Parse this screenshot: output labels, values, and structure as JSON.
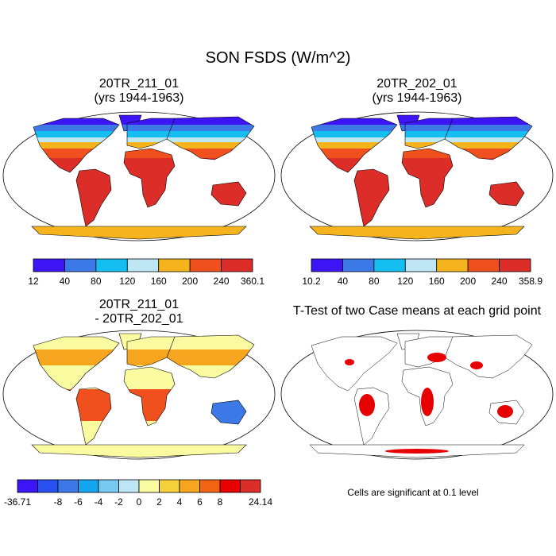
{
  "title": "SON FSDS (W/m^2)",
  "panels": {
    "a": {
      "title_line1": "20TR_211_01",
      "title_line2": "(yrs 1944-1963)"
    },
    "b": {
      "title_line1": "20TR_202_01",
      "title_line2": "(yrs 1944-1963)"
    },
    "c": {
      "title_line1": "20TR_211_01",
      "title_line2": "- 20TR_202_01"
    },
    "d": {
      "title": "T-Test of two Case means at each grid point",
      "note": "Cells are significant at 0.1 level"
    }
  },
  "colorbars": {
    "a": {
      "colors": [
        "#3d14f5",
        "#3c78e6",
        "#14bef0",
        "#bee6f5",
        "#f5b41e",
        "#f0501e",
        "#dc2d28"
      ],
      "labels": [
        "12",
        "40",
        "80",
        "120",
        "160",
        "200",
        "240",
        "360.1"
      ]
    },
    "b": {
      "colors": [
        "#3d14f5",
        "#3c78e6",
        "#14bef0",
        "#bee6f5",
        "#f5b41e",
        "#f0501e",
        "#dc2d28"
      ],
      "labels": [
        "10.2",
        "40",
        "80",
        "120",
        "160",
        "200",
        "240",
        "358.9"
      ]
    },
    "c": {
      "colors": [
        "#3d14f5",
        "#2850f0",
        "#3c78e6",
        "#14a5f0",
        "#78c8f0",
        "#bee6f5",
        "#fafaa0",
        "#f5d23c",
        "#f5a51e",
        "#f06414",
        "#e60000",
        "#dc2d28"
      ],
      "labels": [
        "-36.71",
        "",
        "-8",
        "-6",
        "-4",
        "-2",
        "0",
        "2",
        "4",
        "6",
        "8",
        "",
        "24.14"
      ]
    }
  },
  "map_colors": {
    "ocean": "#ffffff",
    "coast": "#000000",
    "high": "#dc2d28",
    "mid_high": "#f0501e",
    "mid": "#f5b41e",
    "low_mid": "#bee6f5",
    "low": "#14bef0",
    "very_low": "#3c78e6",
    "min": "#3d14f5",
    "diff_neutral": "#fafaa0",
    "diff_pos": "#f5a51e",
    "diff_neg": "#78c8f0",
    "sig": "#e60000"
  }
}
